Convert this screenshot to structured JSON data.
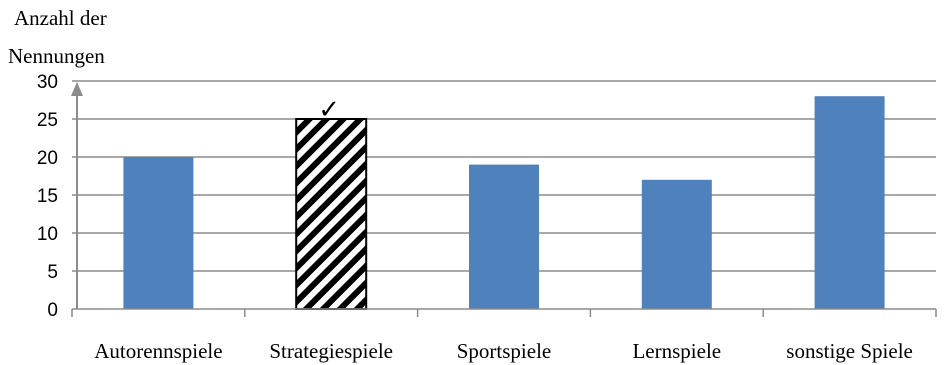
{
  "chart_data": {
    "type": "bar",
    "ylabel_lines": [
      "Anzahl der",
      "Nennungen"
    ],
    "categories": [
      "Autorennspiele",
      "Strategiespiele",
      "Sportspiele",
      "Lernspiele",
      "sonstige Spiele"
    ],
    "values": [
      20,
      25,
      19,
      17,
      28
    ],
    "ylim": [
      0,
      30
    ],
    "yticks": [
      "0",
      "5",
      "10",
      "15",
      "20",
      "25",
      "30"
    ],
    "grid": true,
    "bar_color": "#4f81bd",
    "highlight": {
      "category": "Strategiespiele",
      "pattern": "diagonal-hatch",
      "marker": "✓"
    }
  }
}
